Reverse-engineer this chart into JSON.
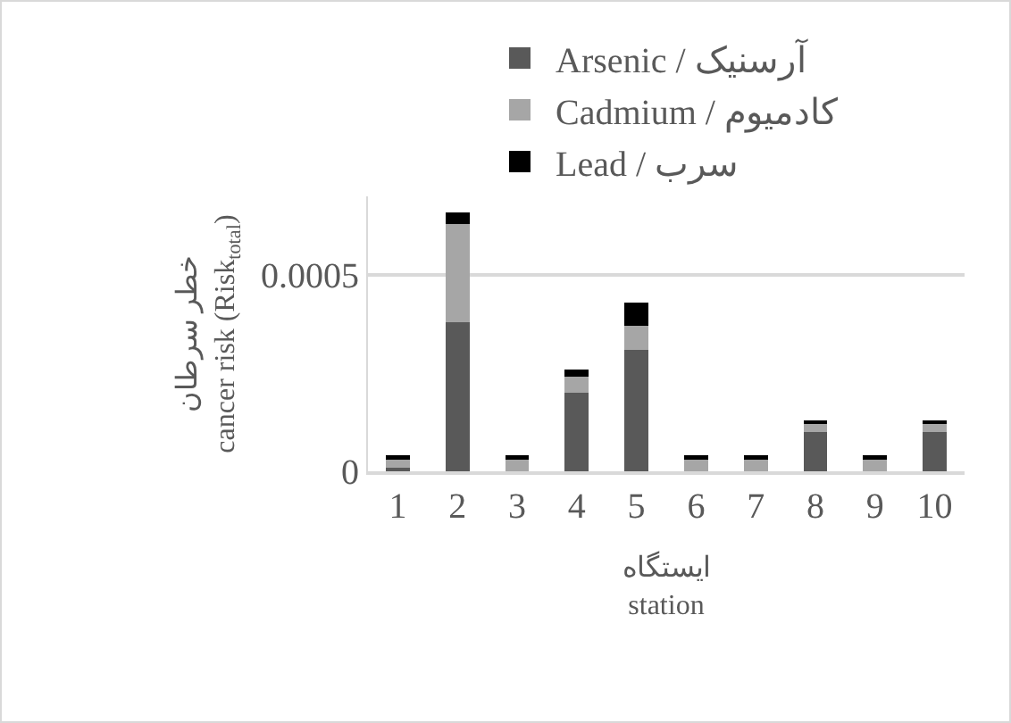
{
  "chart_data": {
    "type": "bar",
    "stacked": true,
    "xlabel": "ایستگاه\nstation",
    "ylabel": "خطر سرطان\ncancer risk (Risk$_{total}$)",
    "categories": [
      "1",
      "2",
      "3",
      "4",
      "5",
      "6",
      "7",
      "8",
      "9",
      "10"
    ],
    "series": [
      {
        "name": "Arsenic / آرسنیک",
        "color": "#595959",
        "values": [
          1e-05,
          0.00038,
          0,
          0.0002,
          0.00031,
          0,
          0,
          0.0001,
          0,
          0.0001
        ]
      },
      {
        "name": "Cadmium / کادمیوم",
        "color": "#a6a6a6",
        "values": [
          2e-05,
          0.00025,
          3e-05,
          4e-05,
          6e-05,
          3e-05,
          3e-05,
          2e-05,
          3e-05,
          2e-05
        ]
      },
      {
        "name": "Lead / سرب",
        "color": "#000000",
        "values": [
          1e-05,
          3e-05,
          1e-05,
          2e-05,
          6e-05,
          1e-05,
          1e-05,
          1e-05,
          1e-05,
          1e-05
        ]
      }
    ],
    "ylim": [
      0,
      0.0007
    ],
    "yticks": [
      0,
      0.0005
    ],
    "grid": "y",
    "legend": "top"
  }
}
